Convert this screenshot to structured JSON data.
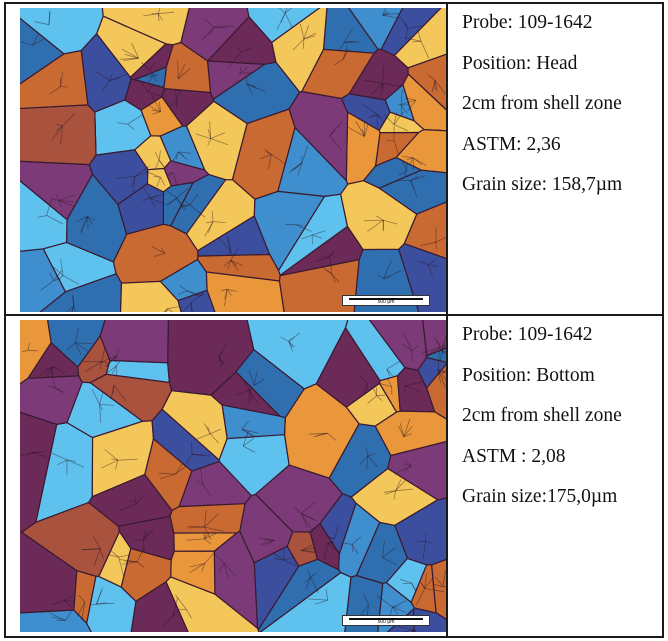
{
  "panels": [
    {
      "scale_label": "500 µm",
      "lines": [
        "Probe: 109-1642",
        "Position: Head",
        "2cm from shell zone",
        "ASTM: 2,36",
        "Grain size: 158,7µm"
      ]
    },
    {
      "scale_label": "500 µm",
      "lines": [
        "Probe: 109-1642",
        "Position: Bottom",
        "2cm from shell zone",
        "ASTM : 2,08",
        "Grain size:175,0µm"
      ]
    }
  ],
  "grain_colors": [
    "#e9973a",
    "#f4c75a",
    "#3f8fcf",
    "#5fc2ee",
    "#6b2a58",
    "#a9533f",
    "#7c3b78",
    "#3c4f9e",
    "#c96a32",
    "#2f6fb0"
  ]
}
